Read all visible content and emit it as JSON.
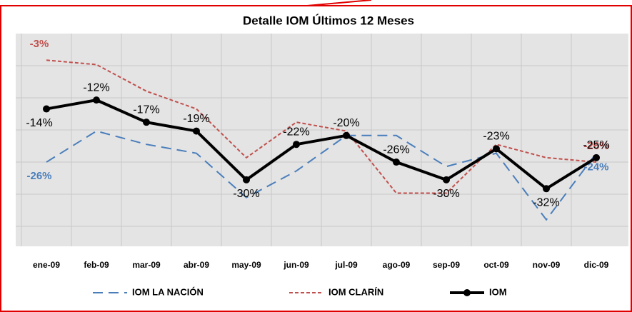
{
  "chart_data": {
    "type": "line",
    "title": "Detalle IOM Últimos 12 Meses",
    "categories": [
      "ene-09",
      "feb-09",
      "mar-09",
      "abr-09",
      "may-09",
      "jun-09",
      "jul-09",
      "ago-09",
      "sep-09",
      "oct-09",
      "nov-09",
      "dic-09"
    ],
    "ylim": [
      3,
      -45
    ],
    "series": [
      {
        "name": "IOM LA NACIÓN",
        "color": "#4a7ebb",
        "dash": "dashed",
        "values": [
          -26,
          -19,
          -22,
          -24,
          -34,
          -28,
          -20,
          -20,
          -27,
          -24,
          -39,
          -24
        ],
        "value_labels": [
          "-26%",
          null,
          null,
          null,
          null,
          null,
          null,
          null,
          null,
          null,
          null,
          "-24%"
        ]
      },
      {
        "name": "IOM CLARÍN",
        "color": "#c0504d",
        "dash": "dotted",
        "values": [
          -3,
          -4,
          -10,
          -14,
          -25,
          -17,
          -19,
          -33,
          -33,
          -22,
          -25,
          -26
        ],
        "value_labels": [
          "-3%",
          null,
          null,
          null,
          null,
          null,
          null,
          null,
          null,
          null,
          null,
          "-26%"
        ]
      },
      {
        "name": "IOM",
        "color": "#000000",
        "dash": "solid",
        "marker": true,
        "values": [
          -14,
          -12,
          -17,
          -19,
          -30,
          -22,
          -20,
          -26,
          -30,
          -23,
          -32,
          -25
        ],
        "value_labels": [
          "-14%",
          "-12%",
          "-17%",
          "-19%",
          "-30%",
          "-22%",
          "-20%",
          "-26%",
          "-30%",
          "-23%",
          "-32%",
          "-25%"
        ]
      }
    ]
  }
}
